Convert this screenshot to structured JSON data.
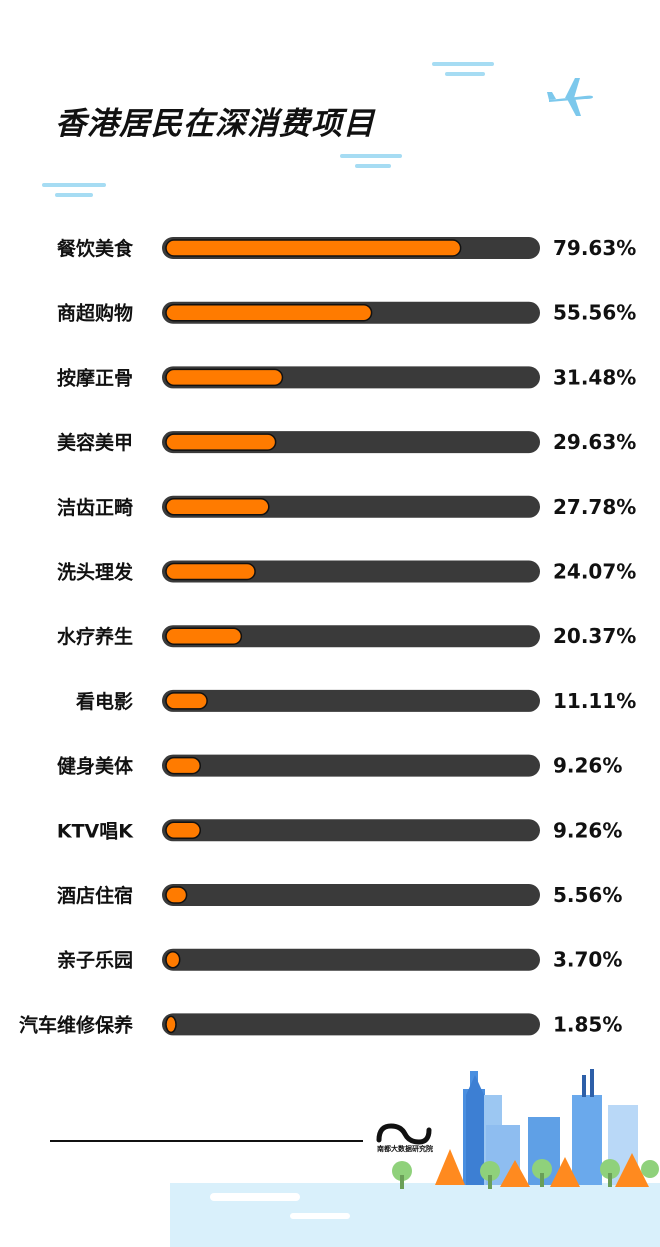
{
  "chart_data": {
    "type": "bar",
    "orientation": "horizontal",
    "title": "香港居民在深消费项目",
    "categories": [
      "餐饮美食",
      "商超购物",
      "按摩正骨",
      "美容美甲",
      "洁齿正畸",
      "洗头理发",
      "水疗养生",
      "看电影",
      "健身美体",
      "KTV唱K",
      "酒店住宿",
      "亲子乐园",
      "汽车维修保养"
    ],
    "values": [
      79.63,
      55.56,
      31.48,
      29.63,
      27.78,
      24.07,
      20.37,
      11.11,
      9.26,
      9.26,
      5.56,
      3.7,
      1.85
    ],
    "value_labels": [
      "79.63%",
      "55.56%",
      "31.48%",
      "29.63%",
      "27.78%",
      "24.07%",
      "20.37%",
      "11.11%",
      "9.26%",
      "9.26%",
      "5.56%",
      "3.70%",
      "1.85%"
    ],
    "xlim": [
      0,
      100
    ],
    "unit": "%",
    "colors": {
      "bar_fill": "#ff7b00",
      "bar_track": "#3a3a3a",
      "bar_outline": "#111111"
    }
  },
  "logo": {
    "text": "南都大数据研究院"
  },
  "colors": {
    "sky_dash": "#a6dcf3",
    "plane": "#7cc8ec",
    "ground": "#d9f0fb"
  },
  "icons": [
    "airplane-icon",
    "city-skyline-illustration",
    "publisher-logo"
  ]
}
